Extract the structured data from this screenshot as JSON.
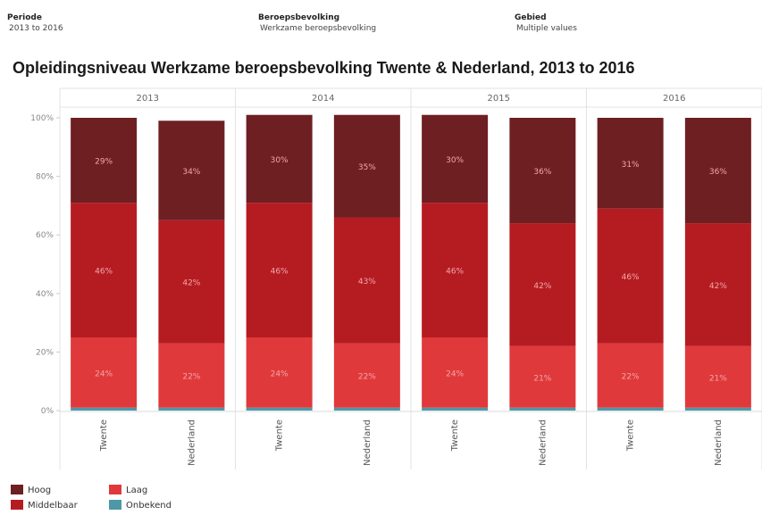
{
  "filters": [
    {
      "label": "Periode",
      "value": "2013 to 2016"
    },
    {
      "label": "Beroepsbevolking",
      "value": "Werkzame beroepsbevolking"
    },
    {
      "label": "Gebied",
      "value": "Multiple values"
    }
  ],
  "colors": {
    "Hoog": "#6e1f22",
    "Middelbaar": "#b51c22",
    "Laag": "#e0393c",
    "Onbekend": "#4d98a8"
  },
  "chart_data": {
    "type": "bar",
    "stacked": true,
    "title": "Opleidingsniveau Werkzame beroepsbevolking Twente & Nederland, 2013 to 2016",
    "years": [
      "2013",
      "2014",
      "2015",
      "2016"
    ],
    "categories": [
      "Twente",
      "Nederland",
      "Twente",
      "Nederland",
      "Twente",
      "Nederland",
      "Twente",
      "Nederland"
    ],
    "yticks": [
      "0%",
      "20%",
      "40%",
      "60%",
      "80%",
      "100%"
    ],
    "ylim": [
      0,
      100
    ],
    "series": [
      {
        "name": "Onbekend",
        "values": [
          1,
          1,
          1,
          1,
          1,
          1,
          1,
          1
        ],
        "labels": [
          "",
          "",
          "",
          "",
          "",
          "",
          "",
          ""
        ]
      },
      {
        "name": "Laag",
        "values": [
          24,
          22,
          24,
          22,
          24,
          21,
          22,
          21
        ],
        "labels": [
          "24%",
          "22%",
          "24%",
          "22%",
          "24%",
          "21%",
          "22%",
          "21%"
        ]
      },
      {
        "name": "Middelbaar",
        "values": [
          46,
          42,
          46,
          43,
          46,
          42,
          46,
          42
        ],
        "labels": [
          "46%",
          "42%",
          "46%",
          "43%",
          "46%",
          "42%",
          "46%",
          "42%"
        ]
      },
      {
        "name": "Hoog",
        "values": [
          29,
          34,
          30,
          35,
          30,
          36,
          31,
          36
        ],
        "labels": [
          "29%",
          "34%",
          "30%",
          "35%",
          "30%",
          "36%",
          "31%",
          "36%"
        ]
      }
    ],
    "legend": [
      "Hoog",
      "Middelbaar",
      "Laag",
      "Onbekend"
    ],
    "legend_position": "bottom-left"
  }
}
